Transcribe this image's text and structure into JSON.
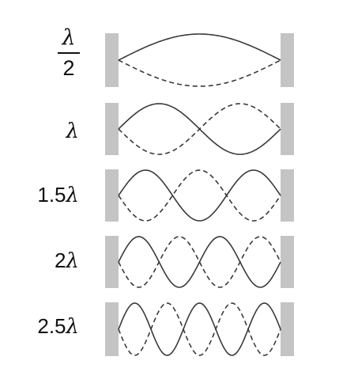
{
  "modes": [
    {
      "label_num": "",
      "label_sym": "λ",
      "label_den": "2",
      "fraction": true,
      "half_wavelengths": 1
    },
    {
      "label_num": "",
      "label_sym": "λ",
      "fraction": false,
      "half_wavelengths": 2
    },
    {
      "label_num": "1.5",
      "label_sym": "λ",
      "fraction": false,
      "half_wavelengths": 3
    },
    {
      "label_num": "2",
      "label_sym": "λ",
      "fraction": false,
      "half_wavelengths": 4
    },
    {
      "label_num": "2.5",
      "label_sym": "λ",
      "fraction": false,
      "half_wavelengths": 5
    }
  ],
  "colors": {
    "wall": "#c4c4c4",
    "wave": "#3a3a3a"
  }
}
